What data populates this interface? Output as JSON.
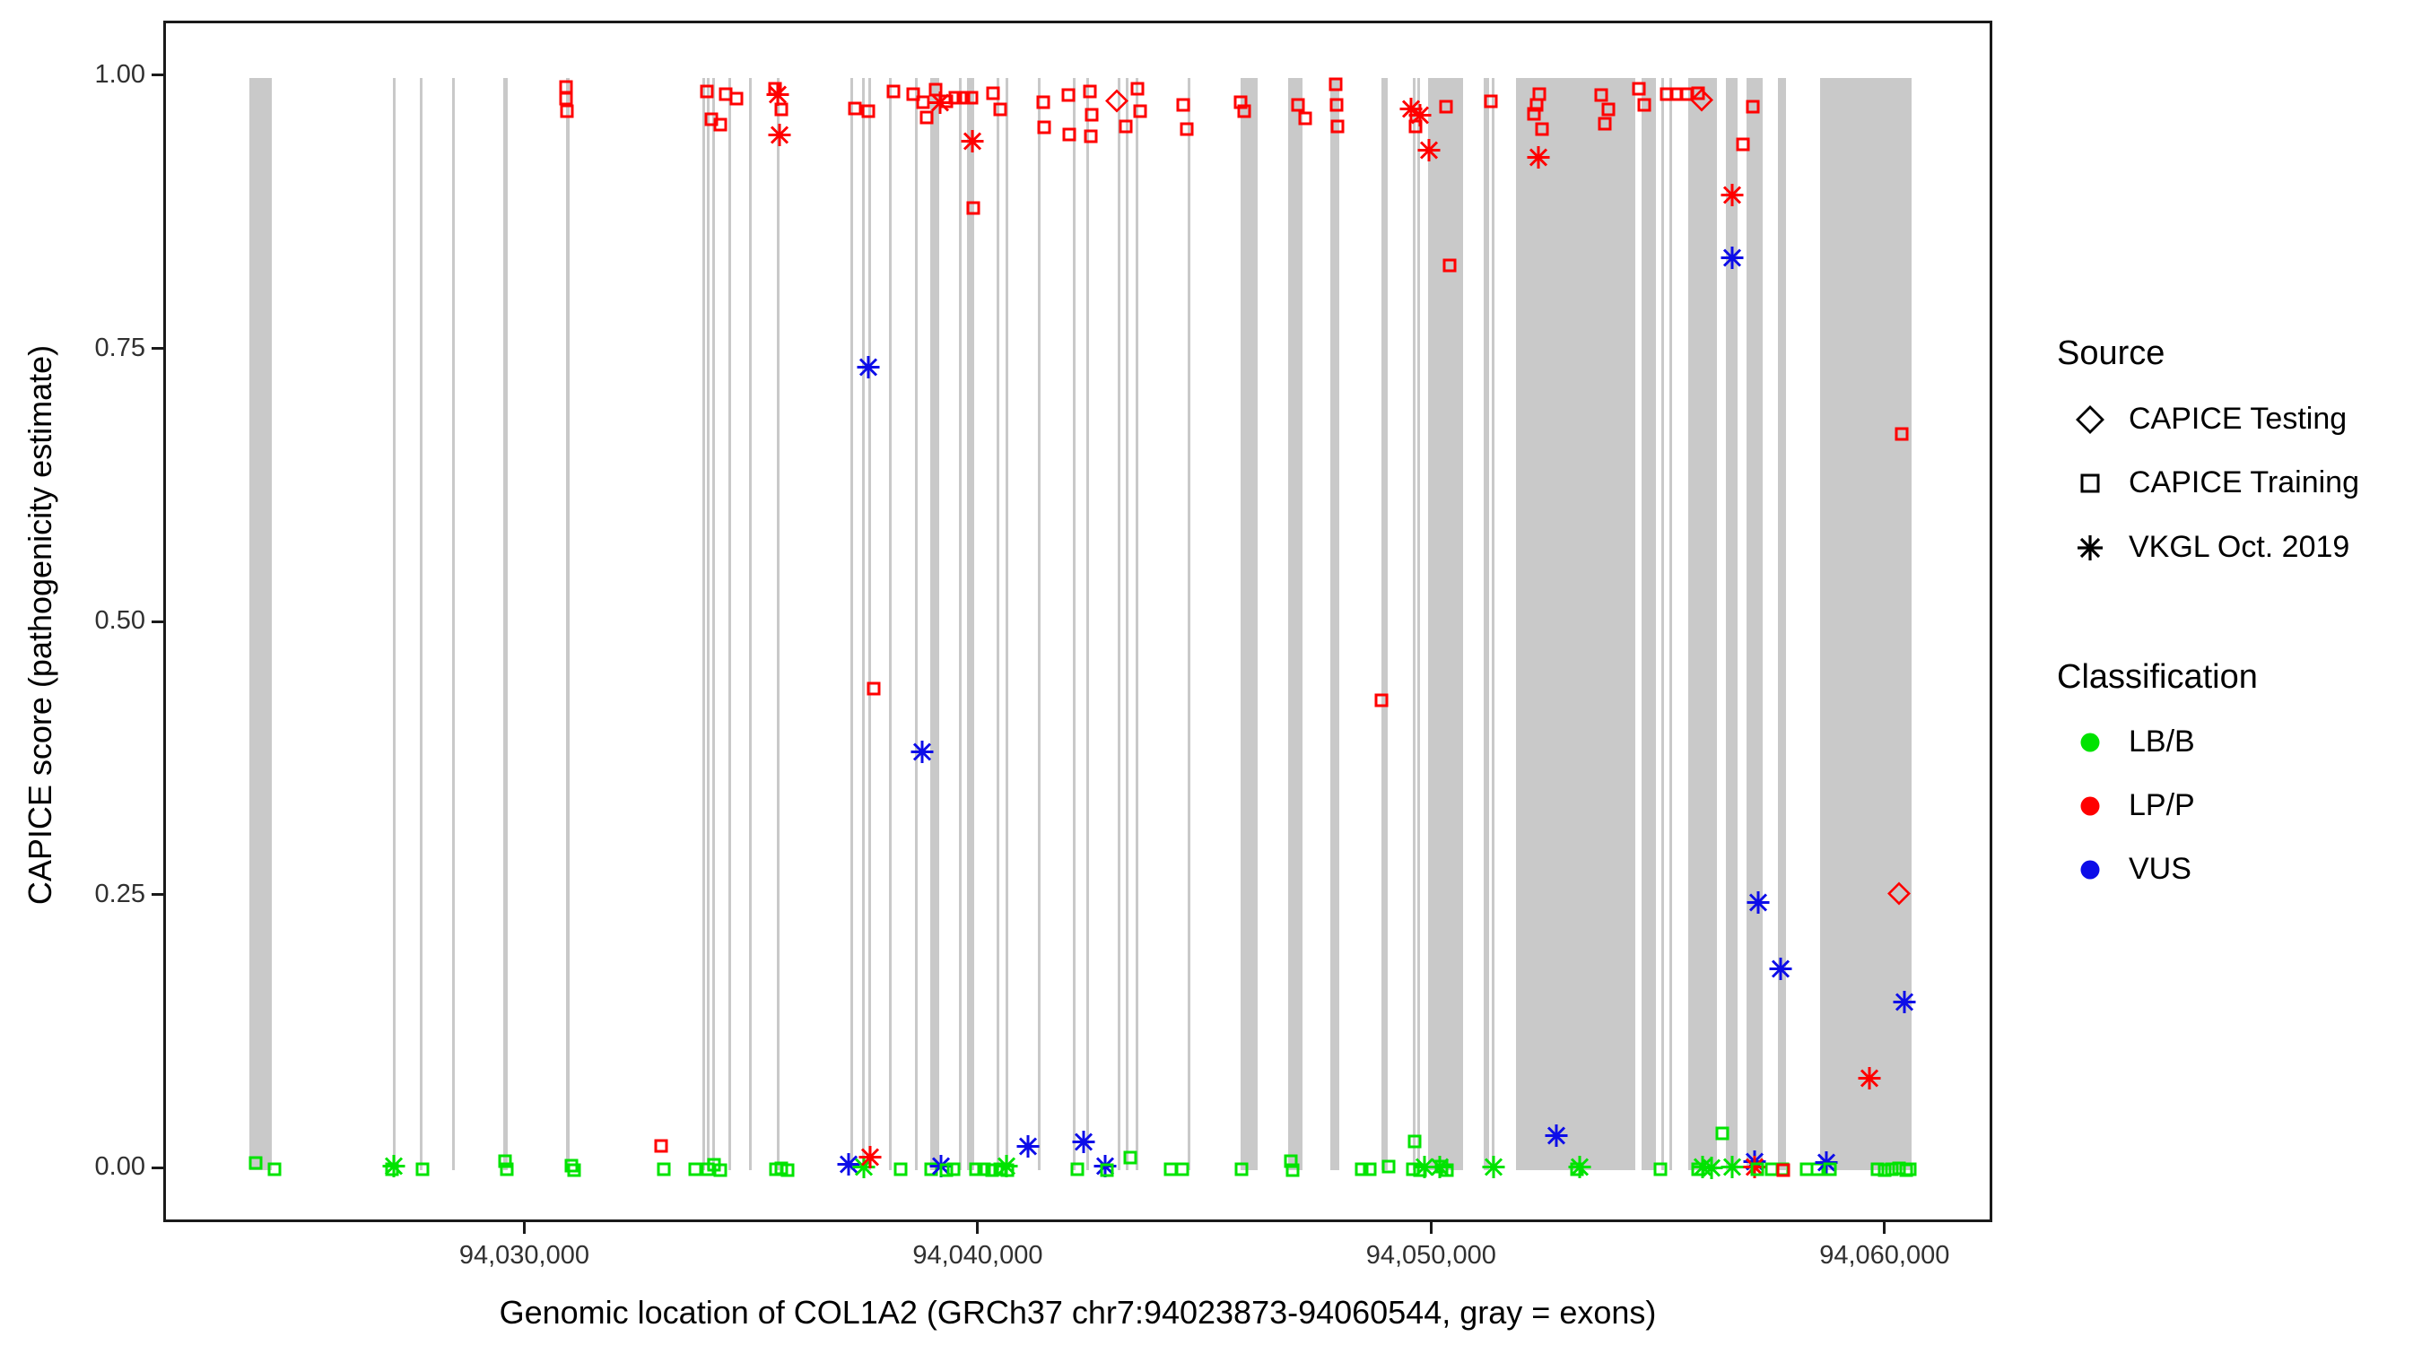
{
  "chart_data": {
    "type": "scatter",
    "title": "",
    "x_axis": {
      "label": "Genomic location of COL1A2 (GRCh37 chr7:94023873-94060544, gray = exons)",
      "tick_values": [
        94030000,
        94040000,
        94050000,
        94060000
      ],
      "tick_labels": [
        "94,030,000",
        "94,040,000",
        "94,050,000",
        "94,060,000"
      ],
      "range": [
        94022039,
        94062378
      ],
      "gene_start": 94023873,
      "gene_end": 94060544
    },
    "y_axis": {
      "label": "CAPICE score (pathogenicity estimate)",
      "tick_values": [
        0,
        0.25,
        0.5,
        0.75,
        1.0
      ],
      "tick_labels": [
        "0.00",
        "0.25",
        "0.50",
        "0.75",
        "1.00"
      ],
      "range": [
        -0.05,
        1.05
      ]
    },
    "grid": "off",
    "exons_gray_bars_bp": [
      [
        94023873,
        94024380
      ],
      [
        94027045,
        94027105
      ],
      [
        94027640,
        94027700
      ],
      [
        94028350,
        94028410
      ],
      [
        94029480,
        94029580
      ],
      [
        94030865,
        94030945
      ],
      [
        94033870,
        94033930
      ],
      [
        94033970,
        94034030
      ],
      [
        94034090,
        94034150
      ],
      [
        94034445,
        94034505
      ],
      [
        94034900,
        94034960
      ],
      [
        94035515,
        94035575
      ],
      [
        94037135,
        94037195
      ],
      [
        94037390,
        94037450
      ],
      [
        94037530,
        94037590
      ],
      [
        94037985,
        94038045
      ],
      [
        94038560,
        94038620
      ],
      [
        94038895,
        94039090
      ],
      [
        94039530,
        94039590
      ],
      [
        94039705,
        94039865
      ],
      [
        94040360,
        94040420
      ],
      [
        94040560,
        94040620
      ],
      [
        94041270,
        94041330
      ],
      [
        94042040,
        94042100
      ],
      [
        94042340,
        94042400
      ],
      [
        94043030,
        94043090
      ],
      [
        94043210,
        94043270
      ],
      [
        94043425,
        94043485
      ],
      [
        94044575,
        94044635
      ],
      [
        94045740,
        94046115
      ],
      [
        94046790,
        94047105
      ],
      [
        94047720,
        94047915
      ],
      [
        94048845,
        94048985
      ],
      [
        94049540,
        94049600
      ],
      [
        94049640,
        94049700
      ],
      [
        94049875,
        94050645
      ],
      [
        94051100,
        94051220
      ],
      [
        94051280,
        94051340
      ],
      [
        94051815,
        94054445
      ],
      [
        94054585,
        94054900
      ],
      [
        94055020,
        94055080
      ],
      [
        94055195,
        94055255
      ],
      [
        94055610,
        94056245
      ],
      [
        94056440,
        94056700
      ],
      [
        94056895,
        94057255
      ],
      [
        94057590,
        94057770
      ],
      [
        94058520,
        94060544
      ]
    ],
    "point_encoding": "each point = [genomic_position_bp, capice_score, source, classification]; source: training=CAPICE Training (open square), testing=CAPICE Testing (open diamond), vkgl=VKGL Oct. 2019 (asterisk); classification: LB/B=green, LP/P=red, VUS=blue",
    "points": [
      [
        94030860,
        0.992,
        "training",
        "LP/P"
      ],
      [
        94030870,
        0.981,
        "training",
        "LP/P"
      ],
      [
        94030880,
        0.97,
        "training",
        "LP/P"
      ],
      [
        94033970,
        0.988,
        "training",
        "LP/P"
      ],
      [
        94034380,
        0.985,
        "training",
        "LP/P"
      ],
      [
        94034620,
        0.981,
        "training",
        "LP/P"
      ],
      [
        94034070,
        0.962,
        "training",
        "LP/P"
      ],
      [
        94034270,
        0.957,
        "training",
        "LP/P"
      ],
      [
        94035470,
        0.99,
        "training",
        "LP/P"
      ],
      [
        94035530,
        0.983,
        "vkgl",
        "LP/P"
      ],
      [
        94035610,
        0.971,
        "training",
        "LP/P"
      ],
      [
        94035570,
        0.946,
        "vkgl",
        "LP/P"
      ],
      [
        94037230,
        0.972,
        "training",
        "LP/P"
      ],
      [
        94037520,
        0.97,
        "training",
        "LP/P"
      ],
      [
        94038090,
        0.988,
        "training",
        "LP/P"
      ],
      [
        94038520,
        0.985,
        "training",
        "LP/P"
      ],
      [
        94038740,
        0.978,
        "training",
        "LP/P"
      ],
      [
        94038820,
        0.964,
        "training",
        "LP/P"
      ],
      [
        94039020,
        0.989,
        "training",
        "LP/P"
      ],
      [
        94039120,
        0.975,
        "vkgl",
        "LP/P"
      ],
      [
        94039250,
        0.979,
        "training",
        "LP/P"
      ],
      [
        94039450,
        0.982,
        "training",
        "LP/P"
      ],
      [
        94039630,
        0.982,
        "training",
        "LP/P"
      ],
      [
        94039810,
        0.982,
        "training",
        "LP/P"
      ],
      [
        94039830,
        0.94,
        "vkgl",
        "LP/P"
      ],
      [
        94039850,
        0.881,
        "training",
        "LP/P"
      ],
      [
        94040280,
        0.986,
        "training",
        "LP/P"
      ],
      [
        94040440,
        0.971,
        "training",
        "LP/P"
      ],
      [
        94041390,
        0.978,
        "training",
        "LP/P"
      ],
      [
        94041400,
        0.955,
        "training",
        "LP/P"
      ],
      [
        94041940,
        0.984,
        "training",
        "LP/P"
      ],
      [
        94041960,
        0.948,
        "training",
        "LP/P"
      ],
      [
        94042420,
        0.988,
        "training",
        "LP/P"
      ],
      [
        94042460,
        0.966,
        "training",
        "LP/P"
      ],
      [
        94042440,
        0.947,
        "training",
        "LP/P"
      ],
      [
        94043010,
        0.977,
        "testing",
        "LP/P"
      ],
      [
        94043210,
        0.956,
        "training",
        "LP/P"
      ],
      [
        94043460,
        0.99,
        "training",
        "LP/P"
      ],
      [
        94043520,
        0.97,
        "training",
        "LP/P"
      ],
      [
        94044480,
        0.975,
        "training",
        "LP/P"
      ],
      [
        94044560,
        0.953,
        "training",
        "LP/P"
      ],
      [
        94045740,
        0.978,
        "training",
        "LP/P"
      ],
      [
        94045820,
        0.97,
        "training",
        "LP/P"
      ],
      [
        94047010,
        0.975,
        "training",
        "LP/P"
      ],
      [
        94047170,
        0.963,
        "training",
        "LP/P"
      ],
      [
        94047840,
        0.994,
        "training",
        "LP/P"
      ],
      [
        94047860,
        0.975,
        "training",
        "LP/P"
      ],
      [
        94047880,
        0.956,
        "training",
        "LP/P"
      ],
      [
        94049500,
        0.97,
        "vkgl",
        "LP/P"
      ],
      [
        94049700,
        0.964,
        "vkgl",
        "LP/P"
      ],
      [
        94050270,
        0.974,
        "training",
        "LP/P"
      ],
      [
        94049600,
        0.956,
        "training",
        "LP/P"
      ],
      [
        94049900,
        0.932,
        "vkgl",
        "LP/P"
      ],
      [
        94050350,
        0.828,
        "training",
        "LP/P"
      ],
      [
        94051260,
        0.979,
        "training",
        "LP/P"
      ],
      [
        94052330,
        0.985,
        "training",
        "LP/P"
      ],
      [
        94052270,
        0.975,
        "training",
        "LP/P"
      ],
      [
        94052210,
        0.967,
        "training",
        "LP/P"
      ],
      [
        94052390,
        0.953,
        "training",
        "LP/P"
      ],
      [
        94052310,
        0.925,
        "vkgl",
        "LP/P"
      ],
      [
        94053690,
        0.984,
        "training",
        "LP/P"
      ],
      [
        94053850,
        0.971,
        "training",
        "LP/P"
      ],
      [
        94053770,
        0.958,
        "training",
        "LP/P"
      ],
      [
        94054520,
        0.99,
        "training",
        "LP/P"
      ],
      [
        94054640,
        0.975,
        "training",
        "LP/P"
      ],
      [
        94055140,
        0.985,
        "training",
        "LP/P"
      ],
      [
        94055360,
        0.985,
        "training",
        "LP/P"
      ],
      [
        94055570,
        0.985,
        "training",
        "LP/P"
      ],
      [
        94055830,
        0.986,
        "training",
        "LP/P"
      ],
      [
        94055910,
        0.978,
        "testing",
        "LP/P"
      ],
      [
        94057040,
        0.974,
        "training",
        "LP/P"
      ],
      [
        94056820,
        0.939,
        "training",
        "LP/P"
      ],
      [
        94056590,
        0.891,
        "vkgl",
        "LP/P"
      ],
      [
        94056590,
        0.833,
        "vkgl",
        "VUS"
      ],
      [
        94060320,
        0.674,
        "training",
        "LP/P"
      ],
      [
        94060270,
        0.251,
        "testing",
        "LP/P"
      ],
      [
        94057160,
        0.243,
        "vkgl",
        "VUS"
      ],
      [
        94057650,
        0.182,
        "vkgl",
        "VUS"
      ],
      [
        94060380,
        0.152,
        "vkgl",
        "VUS"
      ],
      [
        94059610,
        0.082,
        "vkgl",
        "LP/P"
      ],
      [
        94037530,
        0.733,
        "vkgl",
        "VUS"
      ],
      [
        94037650,
        0.441,
        "training",
        "LP/P"
      ],
      [
        94038720,
        0.381,
        "vkgl",
        "VUS"
      ],
      [
        94048850,
        0.43,
        "training",
        "LP/P"
      ],
      [
        94024020,
        0.007,
        "training",
        "LB/B"
      ],
      [
        94024430,
        0.001,
        "training",
        "LB/B"
      ],
      [
        94027030,
        0.001,
        "training",
        "LB/B"
      ],
      [
        94027060,
        0.002,
        "vkgl",
        "LB/B"
      ],
      [
        94027700,
        0.001,
        "training",
        "LB/B"
      ],
      [
        94029520,
        0.008,
        "training",
        "LB/B"
      ],
      [
        94029560,
        0.001,
        "training",
        "LB/B"
      ],
      [
        94030980,
        0.004,
        "training",
        "LB/B"
      ],
      [
        94031040,
        0.0,
        "training",
        "LB/B"
      ],
      [
        94032960,
        0.022,
        "training",
        "LP/P"
      ],
      [
        94033020,
        0.001,
        "training",
        "LB/B"
      ],
      [
        94033710,
        0.001,
        "training",
        "LB/B"
      ],
      [
        94033990,
        0.001,
        "training",
        "LB/B"
      ],
      [
        94034130,
        0.005,
        "training",
        "LB/B"
      ],
      [
        94034270,
        0.0,
        "training",
        "LB/B"
      ],
      [
        94035490,
        0.001,
        "training",
        "LB/B"
      ],
      [
        94035610,
        0.002,
        "training",
        "LB/B"
      ],
      [
        94035750,
        0.0,
        "training",
        "LB/B"
      ],
      [
        94037100,
        0.003,
        "vkgl",
        "VUS"
      ],
      [
        94037430,
        0.001,
        "vkgl",
        "LB/B"
      ],
      [
        94037570,
        0.01,
        "vkgl",
        "LP/P"
      ],
      [
        94038240,
        0.001,
        "training",
        "LB/B"
      ],
      [
        94038920,
        0.001,
        "training",
        "LB/B"
      ],
      [
        94039130,
        0.002,
        "vkgl",
        "VUS"
      ],
      [
        94039250,
        0.0,
        "training",
        "LB/B"
      ],
      [
        94039410,
        0.001,
        "training",
        "LB/B"
      ],
      [
        94039900,
        0.001,
        "training",
        "LB/B"
      ],
      [
        94040080,
        0.001,
        "training",
        "LB/B"
      ],
      [
        94040260,
        0.0,
        "training",
        "LB/B"
      ],
      [
        94040440,
        0.001,
        "training",
        "LB/B"
      ],
      [
        94040580,
        0.002,
        "vkgl",
        "LB/B"
      ],
      [
        94040600,
        0.0,
        "training",
        "LB/B"
      ],
      [
        94041050,
        0.02,
        "vkgl",
        "VUS"
      ],
      [
        94042140,
        0.001,
        "training",
        "LB/B"
      ],
      [
        94042280,
        0.024,
        "vkgl",
        "VUS"
      ],
      [
        94042750,
        0.002,
        "vkgl",
        "VUS"
      ],
      [
        94042790,
        0.0,
        "training",
        "LB/B"
      ],
      [
        94043310,
        0.012,
        "training",
        "LB/B"
      ],
      [
        94044200,
        0.001,
        "training",
        "LB/B"
      ],
      [
        94044460,
        0.001,
        "training",
        "LB/B"
      ],
      [
        94045760,
        0.001,
        "training",
        "LB/B"
      ],
      [
        94046850,
        0.008,
        "training",
        "LB/B"
      ],
      [
        94046880,
        0.0,
        "training",
        "LB/B"
      ],
      [
        94048410,
        0.001,
        "training",
        "LB/B"
      ],
      [
        94048590,
        0.001,
        "training",
        "LB/B"
      ],
      [
        94049010,
        0.003,
        "training",
        "LB/B"
      ],
      [
        94049580,
        0.026,
        "training",
        "LB/B"
      ],
      [
        94049540,
        0.001,
        "training",
        "LB/B"
      ],
      [
        94049700,
        0.0,
        "training",
        "LB/B"
      ],
      [
        94049800,
        0.001,
        "vkgl",
        "LB/B"
      ],
      [
        94050130,
        0.001,
        "vkgl",
        "LB/B"
      ],
      [
        94050170,
        0.003,
        "training",
        "LB/B"
      ],
      [
        94050290,
        0.0,
        "training",
        "LB/B"
      ],
      [
        94051320,
        0.001,
        "vkgl",
        "LB/B"
      ],
      [
        94052700,
        0.03,
        "vkgl",
        "VUS"
      ],
      [
        94053160,
        0.001,
        "training",
        "LB/B"
      ],
      [
        94053220,
        0.001,
        "vkgl",
        "LB/B"
      ],
      [
        94055000,
        0.001,
        "training",
        "LB/B"
      ],
      [
        94055830,
        0.001,
        "training",
        "LB/B"
      ],
      [
        94055930,
        0.001,
        "vkgl",
        "LB/B"
      ],
      [
        94056130,
        0.0,
        "vkgl",
        "LB/B"
      ],
      [
        94056370,
        0.034,
        "training",
        "LB/B"
      ],
      [
        94056590,
        0.001,
        "vkgl",
        "LB/B"
      ],
      [
        94057080,
        0.006,
        "vkgl",
        "VUS"
      ],
      [
        94057080,
        0.001,
        "vkgl",
        "LP/P"
      ],
      [
        94057140,
        0.001,
        "training",
        "LB/B"
      ],
      [
        94057450,
        0.001,
        "training",
        "LB/B"
      ],
      [
        94057690,
        0.001,
        "training",
        "LB/B"
      ],
      [
        94057710,
        0.0,
        "training",
        "LP/P"
      ],
      [
        94058220,
        0.001,
        "training",
        "LB/B"
      ],
      [
        94058460,
        0.001,
        "training",
        "LB/B"
      ],
      [
        94058660,
        0.005,
        "vkgl",
        "VUS"
      ],
      [
        94058740,
        0.001,
        "training",
        "LB/B"
      ],
      [
        94059790,
        0.001,
        "training",
        "LB/B"
      ],
      [
        94059950,
        0.0,
        "training",
        "LB/B"
      ],
      [
        94060110,
        0.001,
        "training",
        "LB/B"
      ],
      [
        94060270,
        0.002,
        "training",
        "LB/B"
      ],
      [
        94060420,
        0.0,
        "training",
        "LB/B"
      ],
      [
        94060500,
        0.001,
        "training",
        "LB/B"
      ]
    ]
  },
  "legend": {
    "position": "right",
    "source": {
      "title": "Source",
      "items": [
        {
          "label": "CAPICE Testing",
          "marker": "diamond-open"
        },
        {
          "label": "CAPICE Training",
          "marker": "square-open"
        },
        {
          "label": "VKGL Oct. 2019",
          "marker": "asterisk"
        }
      ]
    },
    "classification": {
      "title": "Classification",
      "items": [
        {
          "label": "LB/B",
          "color": "#00e300"
        },
        {
          "label": "LP/P",
          "color": "#ff0000"
        },
        {
          "label": "VUS",
          "color": "#0d0de8"
        }
      ]
    }
  },
  "colors": {
    "lb_b": "#00e300",
    "lp_p": "#ff0000",
    "vus": "#0d0de8",
    "exon_gray": "#c9c9c9",
    "panel_border": "#1a1a1a",
    "tick_text": "#303030",
    "background": "#ffffff"
  }
}
